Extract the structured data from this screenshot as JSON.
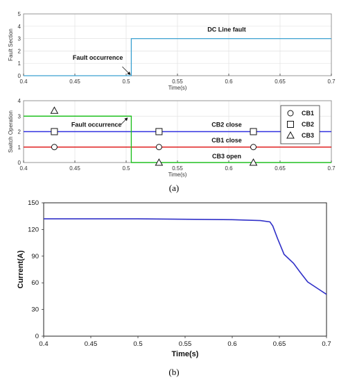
{
  "figure": {
    "caption_a": "(a)",
    "caption_b": "(b)"
  },
  "chart_data": [
    {
      "type": "line",
      "title": "",
      "xlabel": "Time(s)",
      "ylabel": "Fault Section",
      "xlim": [
        0.4,
        0.7
      ],
      "ylim": [
        0,
        5
      ],
      "x_ticks": [
        "0.4",
        "0.45",
        "0.5",
        "0.55",
        "0.6",
        "0.65",
        "0.7"
      ],
      "y_ticks": [
        "0",
        "1",
        "2",
        "3",
        "4",
        "5"
      ],
      "grid": true,
      "series": [
        {
          "color": "#3aa0d0",
          "points": [
            [
              0.4,
              0
            ],
            [
              0.505,
              0
            ],
            [
              0.505,
              3
            ],
            [
              0.7,
              3
            ]
          ]
        }
      ],
      "annotations": [
        {
          "text": "Fault occurrence",
          "x": 0.505,
          "y": 0
        },
        {
          "text": "DC Line fault",
          "x": 0.6,
          "y": 3
        }
      ]
    },
    {
      "type": "line",
      "title": "",
      "xlabel": "Time(s)",
      "ylabel": "Switch Operation",
      "xlim": [
        0.4,
        0.7
      ],
      "ylim": [
        0,
        4
      ],
      "x_ticks": [
        "0.4",
        "0.45",
        "0.5",
        "0.55",
        "0.6",
        "0.65",
        "0.7"
      ],
      "y_ticks": [
        "0",
        "1",
        "2",
        "3",
        "4"
      ],
      "grid": true,
      "legend": "right",
      "series": [
        {
          "name": "CB1",
          "marker": "circle",
          "color": "#e02020",
          "points": [
            [
              0.4,
              1
            ],
            [
              0.7,
              1
            ]
          ],
          "markers_at": [
            0.43,
            0.532,
            0.624
          ]
        },
        {
          "name": "CB2",
          "marker": "square",
          "color": "#3030e0",
          "points": [
            [
              0.4,
              2
            ],
            [
              0.7,
              2
            ]
          ],
          "markers_at": [
            0.43,
            0.532,
            0.624
          ]
        },
        {
          "name": "CB3",
          "marker": "triangle",
          "color": "#20c020",
          "points": [
            [
              0.4,
              3
            ],
            [
              0.505,
              3
            ],
            [
              0.505,
              0
            ],
            [
              0.7,
              0
            ]
          ],
          "markers_at": [
            0.43,
            0.532,
            0.624
          ]
        }
      ],
      "annotations": [
        {
          "text": "Fault occurrence",
          "x": 0.505,
          "y": 3
        },
        {
          "text": "CB2 close",
          "x": 0.6,
          "y": 2
        },
        {
          "text": "CB1 close",
          "x": 0.6,
          "y": 1
        },
        {
          "text": "CB3 open",
          "x": 0.6,
          "y": 0
        }
      ]
    },
    {
      "type": "line",
      "title": "",
      "xlabel": "Time(s)",
      "ylabel": "Current(A)",
      "xlim": [
        0.4,
        0.7
      ],
      "ylim": [
        0,
        150
      ],
      "x_ticks": [
        "0.4",
        "0.45",
        "0.5",
        "0.55",
        "0.6",
        "0.65",
        "0.7"
      ],
      "y_ticks": [
        "0",
        "30",
        "60",
        "90",
        "120",
        "150"
      ],
      "grid": false,
      "series": [
        {
          "color": "#3030c8",
          "points": [
            [
              0.4,
              132
            ],
            [
              0.5,
              132
            ],
            [
              0.55,
              131.5
            ],
            [
              0.6,
              131
            ],
            [
              0.63,
              130
            ],
            [
              0.64,
              128.5
            ],
            [
              0.643,
              124
            ],
            [
              0.648,
              110
            ],
            [
              0.655,
              92
            ],
            [
              0.665,
              82
            ],
            [
              0.672,
              72
            ],
            [
              0.68,
              61
            ],
            [
              0.69,
              54
            ],
            [
              0.7,
              47
            ]
          ]
        }
      ]
    }
  ]
}
